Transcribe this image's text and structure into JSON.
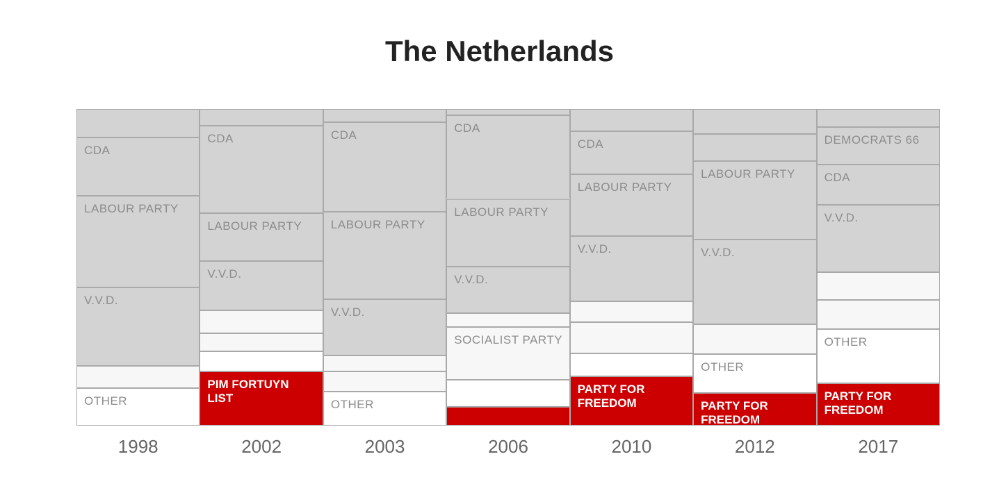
{
  "chart_data": {
    "type": "stacked-bar",
    "title": "The Netherlands",
    "categories": [
      "1998",
      "2002",
      "2003",
      "2006",
      "2010",
      "2012",
      "2017"
    ],
    "stacks": [
      {
        "segments": [
          {
            "label": "OTHER",
            "value": 11.8,
            "color": "#ffffff"
          },
          {
            "value": 7.0,
            "color": "#f7f7f7"
          },
          {
            "label": "V.V.D.",
            "value": 24.8,
            "color": "#d3d3d3"
          },
          {
            "label": "LABOUR PARTY",
            "value": 28.9,
            "color": "#d3d3d3"
          },
          {
            "label": "CDA",
            "value": 18.4,
            "color": "#d3d3d3"
          },
          {
            "value": 9.0,
            "color": "#d3d3d3"
          }
        ]
      },
      {
        "segments": [
          {
            "label": "PIM FORTUYN LIST",
            "value": 17.1,
            "color": "#cc0000"
          },
          {
            "value": 6.4,
            "color": "#ffffff"
          },
          {
            "value": 5.7,
            "color": "#f7f7f7"
          },
          {
            "value": 7.2,
            "color": "#f7f7f7"
          },
          {
            "label": "V.V.D.",
            "value": 15.6,
            "color": "#d3d3d3"
          },
          {
            "label": "LABOUR PARTY",
            "value": 15.1,
            "color": "#d3d3d3"
          },
          {
            "label": "CDA",
            "value": 27.6,
            "color": "#d3d3d3"
          },
          {
            "value": 5.3,
            "color": "#d3d3d3"
          }
        ]
      },
      {
        "segments": [
          {
            "label": "OTHER",
            "value": 10.7,
            "color": "#ffffff"
          },
          {
            "value": 6.4,
            "color": "#f7f7f7"
          },
          {
            "value": 5.0,
            "color": "#f7f7f7"
          },
          {
            "label": "V.V.D.",
            "value": 17.8,
            "color": "#d3d3d3"
          },
          {
            "label": "LABOUR PARTY",
            "value": 27.6,
            "color": "#d3d3d3"
          },
          {
            "label": "CDA",
            "value": 28.3,
            "color": "#d3d3d3"
          },
          {
            "value": 4.2,
            "color": "#d3d3d3"
          }
        ]
      },
      {
        "segments": [
          {
            "value": 5.9,
            "color": "#cc0000"
          },
          {
            "value": 8.6,
            "color": "#ffffff"
          },
          {
            "label": "SOCIALIST PARTY",
            "value": 16.7,
            "color": "#f7f7f7"
          },
          {
            "value": 4.4,
            "color": "#f7f7f7"
          },
          {
            "label": "V.V.D.",
            "value": 14.7,
            "color": "#d3d3d3"
          },
          {
            "label": "LABOUR PARTY",
            "value": 21.3,
            "color": "#d3d3d3"
          },
          {
            "label": "CDA",
            "value": 26.4,
            "color": "#d3d3d3"
          },
          {
            "value": 2.0,
            "color": "#d3d3d3"
          }
        ]
      },
      {
        "segments": [
          {
            "label": "PARTY FOR FREEDOM",
            "value": 15.6,
            "color": "#cc0000"
          },
          {
            "value": 7.2,
            "color": "#ffffff"
          },
          {
            "value": 9.9,
            "color": "#f7f7f7"
          },
          {
            "value": 6.6,
            "color": "#f7f7f7"
          },
          {
            "label": "V.V.D.",
            "value": 20.6,
            "color": "#d3d3d3"
          },
          {
            "label": "LABOUR PARTY",
            "value": 19.5,
            "color": "#d3d3d3"
          },
          {
            "label": "CDA",
            "value": 13.6,
            "color": "#d3d3d3"
          },
          {
            "value": 7.0,
            "color": "#d3d3d3"
          }
        ]
      },
      {
        "segments": [
          {
            "label": "PARTY FOR FREEDOM",
            "value": 10.3,
            "color": "#cc0000"
          },
          {
            "label": "OTHER",
            "value": 12.3,
            "color": "#ffffff"
          },
          {
            "value": 9.4,
            "color": "#f7f7f7"
          },
          {
            "label": "V.V.D.",
            "value": 26.8,
            "color": "#d3d3d3"
          },
          {
            "label": "LABOUR PARTY",
            "value": 24.8,
            "color": "#d3d3d3"
          },
          {
            "value": 8.6,
            "color": "#d3d3d3"
          },
          {
            "value": 7.8,
            "color": "#d3d3d3"
          }
        ]
      },
      {
        "segments": [
          {
            "label": "PARTY FOR FREEDOM",
            "value": 13.4,
            "color": "#cc0000"
          },
          {
            "label": "OTHER",
            "value": 17.1,
            "color": "#ffffff"
          },
          {
            "value": 9.2,
            "color": "#f7f7f7"
          },
          {
            "value": 8.8,
            "color": "#f7f7f7"
          },
          {
            "label": "V.V.D.",
            "value": 21.3,
            "color": "#d3d3d3"
          },
          {
            "label": "CDA",
            "value": 12.7,
            "color": "#d3d3d3"
          },
          {
            "label": "DEMOCRATS 66",
            "value": 11.8,
            "color": "#d3d3d3"
          },
          {
            "value": 5.7,
            "color": "#d3d3d3"
          }
        ]
      }
    ]
  }
}
